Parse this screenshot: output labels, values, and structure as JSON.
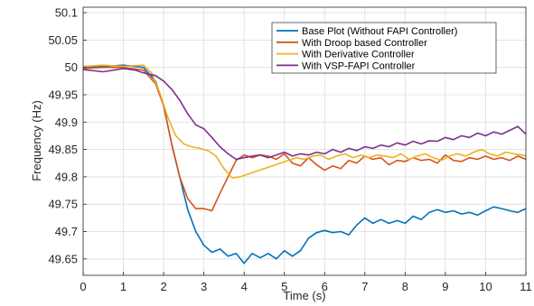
{
  "chart_data": {
    "type": "line",
    "title": "",
    "xlabel": "Time (s)",
    "ylabel": "Frequency (Hz)",
    "xlim": [
      0,
      11
    ],
    "ylim": [
      49.62,
      50.11
    ],
    "x_ticks": [
      0,
      1,
      2,
      3,
      4,
      5,
      6,
      7,
      8,
      9,
      10,
      11
    ],
    "x_tick_labels": [
      "0",
      "1",
      "2",
      "3",
      "4",
      "5",
      "6",
      "7",
      "8",
      "9",
      "10",
      "11"
    ],
    "y_ticks": [
      49.65,
      49.7,
      49.75,
      49.8,
      49.85,
      49.9,
      49.95,
      50,
      50.05,
      50.1
    ],
    "y_tick_labels": [
      "49.65",
      "49.7",
      "49.75",
      "49.8",
      "49.85",
      "49.9",
      "49.95",
      "50",
      "50.05",
      "50.1"
    ],
    "grid": true,
    "legend_position": "top-right",
    "series": [
      {
        "name": "Base Plot (Without FAPI Controller)",
        "color": "#0072BD",
        "points": [
          [
            0,
            49.999
          ],
          [
            0.5,
            50.002
          ],
          [
            1.0,
            50.004
          ],
          [
            1.5,
            50.0
          ],
          [
            1.8,
            49.975
          ],
          [
            2.0,
            49.93
          ],
          [
            2.2,
            49.86
          ],
          [
            2.4,
            49.8
          ],
          [
            2.6,
            49.74
          ],
          [
            2.8,
            49.7
          ],
          [
            3.0,
            49.675
          ],
          [
            3.2,
            49.662
          ],
          [
            3.4,
            49.668
          ],
          [
            3.6,
            49.655
          ],
          [
            3.8,
            49.66
          ],
          [
            4.0,
            49.642
          ],
          [
            4.2,
            49.66
          ],
          [
            4.4,
            49.652
          ],
          [
            4.6,
            49.66
          ],
          [
            4.8,
            49.65
          ],
          [
            5.0,
            49.665
          ],
          [
            5.2,
            49.655
          ],
          [
            5.4,
            49.665
          ],
          [
            5.6,
            49.688
          ],
          [
            5.8,
            49.698
          ],
          [
            6.0,
            49.702
          ],
          [
            6.2,
            49.698
          ],
          [
            6.4,
            49.7
          ],
          [
            6.6,
            49.694
          ],
          [
            6.8,
            49.712
          ],
          [
            7.0,
            49.725
          ],
          [
            7.2,
            49.715
          ],
          [
            7.4,
            49.722
          ],
          [
            7.6,
            49.715
          ],
          [
            7.8,
            49.72
          ],
          [
            8.0,
            49.715
          ],
          [
            8.2,
            49.728
          ],
          [
            8.4,
            49.722
          ],
          [
            8.6,
            49.735
          ],
          [
            8.8,
            49.74
          ],
          [
            9.0,
            49.735
          ],
          [
            9.2,
            49.738
          ],
          [
            9.4,
            49.732
          ],
          [
            9.6,
            49.735
          ],
          [
            9.8,
            49.73
          ],
          [
            10.0,
            49.738
          ],
          [
            10.2,
            49.745
          ],
          [
            10.4,
            49.742
          ],
          [
            10.6,
            49.738
          ],
          [
            10.8,
            49.735
          ],
          [
            11.0,
            49.742
          ]
        ]
      },
      {
        "name": "With Droop based Controller",
        "color": "#D95319",
        "points": [
          [
            0,
            49.998
          ],
          [
            0.5,
            50.0
          ],
          [
            1.0,
            50.0
          ],
          [
            1.5,
            49.995
          ],
          [
            1.8,
            49.97
          ],
          [
            2.0,
            49.93
          ],
          [
            2.2,
            49.86
          ],
          [
            2.4,
            49.8
          ],
          [
            2.6,
            49.76
          ],
          [
            2.8,
            49.742
          ],
          [
            3.0,
            49.742
          ],
          [
            3.2,
            49.738
          ],
          [
            3.4,
            49.77
          ],
          [
            3.6,
            49.8
          ],
          [
            3.8,
            49.83
          ],
          [
            4.0,
            49.84
          ],
          [
            4.2,
            49.835
          ],
          [
            4.4,
            49.84
          ],
          [
            4.6,
            49.838
          ],
          [
            4.8,
            49.832
          ],
          [
            5.0,
            49.842
          ],
          [
            5.2,
            49.825
          ],
          [
            5.4,
            49.82
          ],
          [
            5.6,
            49.835
          ],
          [
            5.8,
            49.822
          ],
          [
            6.0,
            49.812
          ],
          [
            6.2,
            49.82
          ],
          [
            6.4,
            49.815
          ],
          [
            6.6,
            49.83
          ],
          [
            6.8,
            49.825
          ],
          [
            7.0,
            49.838
          ],
          [
            7.2,
            49.832
          ],
          [
            7.4,
            49.835
          ],
          [
            7.6,
            49.822
          ],
          [
            7.8,
            49.83
          ],
          [
            8.0,
            49.828
          ],
          [
            8.2,
            49.835
          ],
          [
            8.4,
            49.83
          ],
          [
            8.6,
            49.832
          ],
          [
            8.8,
            49.825
          ],
          [
            9.0,
            49.84
          ],
          [
            9.2,
            49.83
          ],
          [
            9.4,
            49.828
          ],
          [
            9.6,
            49.835
          ],
          [
            9.8,
            49.832
          ],
          [
            10.0,
            49.838
          ],
          [
            10.2,
            49.832
          ],
          [
            10.4,
            49.835
          ],
          [
            10.6,
            49.83
          ],
          [
            10.8,
            49.838
          ],
          [
            11.0,
            49.832
          ]
        ]
      },
      {
        "name": "With Derivative Controller",
        "color": "#EDB120",
        "points": [
          [
            0,
            50.002
          ],
          [
            0.5,
            50.004
          ],
          [
            1.0,
            50.002
          ],
          [
            1.5,
            50.004
          ],
          [
            1.7,
            49.99
          ],
          [
            1.9,
            49.955
          ],
          [
            2.1,
            49.91
          ],
          [
            2.3,
            49.875
          ],
          [
            2.5,
            49.86
          ],
          [
            2.7,
            49.855
          ],
          [
            2.9,
            49.852
          ],
          [
            3.1,
            49.848
          ],
          [
            3.3,
            49.838
          ],
          [
            3.5,
            49.815
          ],
          [
            3.7,
            49.798
          ],
          [
            3.9,
            49.8
          ],
          [
            4.1,
            49.805
          ],
          [
            4.3,
            49.81
          ],
          [
            4.5,
            49.815
          ],
          [
            4.7,
            49.82
          ],
          [
            4.9,
            49.825
          ],
          [
            5.1,
            49.83
          ],
          [
            5.3,
            49.835
          ],
          [
            5.5,
            49.832
          ],
          [
            5.7,
            49.838
          ],
          [
            5.9,
            49.84
          ],
          [
            6.1,
            49.832
          ],
          [
            6.3,
            49.838
          ],
          [
            6.5,
            49.842
          ],
          [
            6.7,
            49.835
          ],
          [
            6.9,
            49.84
          ],
          [
            7.1,
            49.835
          ],
          [
            7.3,
            49.84
          ],
          [
            7.5,
            49.838
          ],
          [
            7.7,
            49.835
          ],
          [
            7.9,
            49.842
          ],
          [
            8.1,
            49.832
          ],
          [
            8.3,
            49.838
          ],
          [
            8.5,
            49.842
          ],
          [
            8.7,
            49.835
          ],
          [
            8.9,
            49.83
          ],
          [
            9.1,
            49.838
          ],
          [
            9.3,
            49.842
          ],
          [
            9.5,
            49.838
          ],
          [
            9.7,
            49.845
          ],
          [
            9.9,
            49.85
          ],
          [
            10.1,
            49.842
          ],
          [
            10.3,
            49.838
          ],
          [
            10.5,
            49.845
          ],
          [
            10.7,
            49.842
          ],
          [
            10.9,
            49.84
          ],
          [
            11.0,
            49.838
          ]
        ]
      },
      {
        "name": "With VSP-FAPI Controller",
        "color": "#7E2F8E",
        "points": [
          [
            0,
            49.996
          ],
          [
            0.5,
            49.992
          ],
          [
            1.0,
            49.998
          ],
          [
            1.3,
            49.995
          ],
          [
            1.5,
            49.99
          ],
          [
            1.8,
            49.985
          ],
          [
            2.0,
            49.975
          ],
          [
            2.2,
            49.96
          ],
          [
            2.4,
            49.94
          ],
          [
            2.6,
            49.915
          ],
          [
            2.8,
            49.895
          ],
          [
            3.0,
            49.888
          ],
          [
            3.2,
            49.872
          ],
          [
            3.4,
            49.855
          ],
          [
            3.6,
            49.842
          ],
          [
            3.8,
            49.832
          ],
          [
            4.0,
            49.835
          ],
          [
            4.2,
            49.838
          ],
          [
            4.4,
            49.84
          ],
          [
            4.6,
            49.835
          ],
          [
            4.8,
            49.84
          ],
          [
            5.0,
            49.845
          ],
          [
            5.2,
            49.838
          ],
          [
            5.4,
            49.842
          ],
          [
            5.6,
            49.84
          ],
          [
            5.8,
            49.845
          ],
          [
            6.0,
            49.842
          ],
          [
            6.2,
            49.85
          ],
          [
            6.4,
            49.845
          ],
          [
            6.6,
            49.852
          ],
          [
            6.8,
            49.848
          ],
          [
            7.0,
            49.855
          ],
          [
            7.2,
            49.852
          ],
          [
            7.4,
            49.858
          ],
          [
            7.6,
            49.855
          ],
          [
            7.8,
            49.862
          ],
          [
            8.0,
            49.858
          ],
          [
            8.2,
            49.865
          ],
          [
            8.4,
            49.86
          ],
          [
            8.6,
            49.866
          ],
          [
            8.8,
            49.865
          ],
          [
            9.0,
            49.872
          ],
          [
            9.2,
            49.868
          ],
          [
            9.4,
            49.875
          ],
          [
            9.6,
            49.872
          ],
          [
            9.8,
            49.88
          ],
          [
            10.0,
            49.875
          ],
          [
            10.2,
            49.882
          ],
          [
            10.4,
            49.878
          ],
          [
            10.6,
            49.885
          ],
          [
            10.8,
            49.892
          ],
          [
            11.0,
            49.878
          ]
        ]
      }
    ]
  }
}
